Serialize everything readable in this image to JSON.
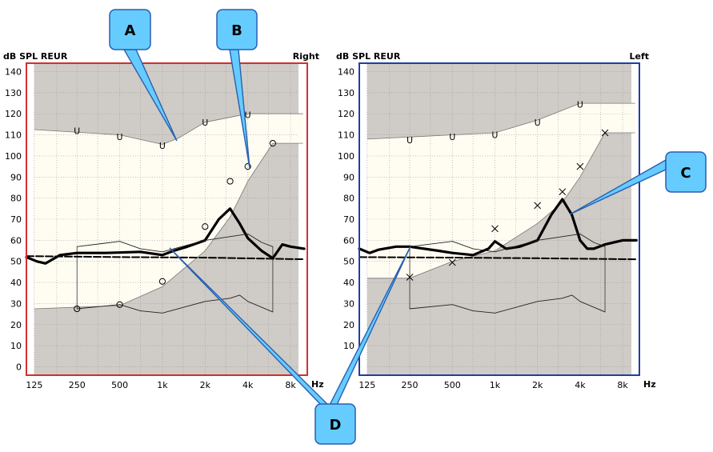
{
  "chart_data": [
    {
      "type": "line",
      "side_label": "Right",
      "ylabel": "dB SPL REUR",
      "xlabel": "Hz",
      "xscale": "log",
      "xlim": [
        110,
        10500
      ],
      "ylim": [
        -4,
        144
      ],
      "x_ticks": [
        125,
        250,
        500,
        1000,
        2000,
        4000,
        8000
      ],
      "x_tick_labels": [
        "125",
        "250",
        "500",
        "1k",
        "2k",
        "4k",
        "8k"
      ],
      "y_ticks": [
        0,
        10,
        20,
        30,
        40,
        50,
        60,
        70,
        80,
        90,
        100,
        110,
        120,
        130,
        140
      ],
      "y_tick_labels": [
        "0",
        "10",
        "20",
        "30",
        "40",
        "50",
        "60",
        "70",
        "80",
        "90",
        "100",
        "110",
        "120",
        "130",
        "140"
      ],
      "frame_color": "#d03030",
      "target_zone": {
        "upper": [
          [
            125,
            112.5
          ],
          [
            500,
            110
          ],
          [
            1000,
            105.5
          ],
          [
            1300,
            108.5
          ],
          [
            2000,
            116
          ],
          [
            4000,
            120
          ],
          [
            4001,
            120
          ],
          [
            9800,
            120
          ]
        ],
        "lower": [
          [
            125,
            27.5
          ],
          [
            500,
            29
          ],
          [
            1000,
            38
          ],
          [
            2000,
            55
          ],
          [
            3000,
            71
          ],
          [
            4000,
            88
          ],
          [
            6000,
            106
          ],
          [
            9800,
            106
          ]
        ]
      },
      "ucl_markers": {
        "symbol": "U",
        "points": [
          [
            250,
            112
          ],
          [
            500,
            109
          ],
          [
            1000,
            105
          ],
          [
            2000,
            116
          ],
          [
            4000,
            119.5
          ]
        ]
      },
      "threshold_markers": {
        "symbol": "O",
        "points": [
          [
            250,
            27.5
          ],
          [
            500,
            29.5
          ],
          [
            1000,
            40.5
          ],
          [
            2000,
            66.5
          ],
          [
            3000,
            88
          ],
          [
            4000,
            95
          ],
          [
            6000,
            106
          ]
        ]
      },
      "series": [
        {
          "name": "",
          "style": "bold",
          "points": [
            [
              110,
              52
            ],
            [
              130,
              50
            ],
            [
              150,
              49
            ],
            [
              190,
              53
            ],
            [
              250,
              54
            ],
            [
              400,
              54
            ],
            [
              700,
              54.5
            ],
            [
              1000,
              53
            ],
            [
              1200,
              55
            ],
            [
              1500,
              57
            ],
            [
              2000,
              60
            ],
            [
              2500,
              70
            ],
            [
              3000,
              75
            ],
            [
              3500,
              68
            ],
            [
              4000,
              61
            ],
            [
              5000,
              55
            ],
            [
              6000,
              51.5
            ],
            [
              7000,
              58
            ],
            [
              8000,
              57
            ],
            [
              10000,
              56
            ]
          ]
        },
        {
          "name": "",
          "style": "dashed",
          "points": [
            [
              110,
              52.5
            ],
            [
              500,
              52
            ],
            [
              2000,
              51.8
            ],
            [
              10000,
              51
            ]
          ]
        },
        {
          "name": "",
          "style": "thin",
          "points": [
            [
              250,
              57
            ],
            [
              500,
              59.5
            ],
            [
              700,
              56
            ],
            [
              1000,
              54.5
            ],
            [
              2000,
              60
            ],
            [
              4000,
              63
            ],
            [
              5000,
              59
            ],
            [
              6000,
              57
            ]
          ]
        },
        {
          "name": "",
          "style": "thin",
          "points": [
            [
              250,
              27.5
            ],
            [
              500,
              29.5
            ],
            [
              700,
              26.5
            ],
            [
              1000,
              25.5
            ],
            [
              2000,
              31
            ],
            [
              3000,
              32.5
            ],
            [
              3500,
              34
            ],
            [
              4000,
              31
            ],
            [
              6000,
              26
            ]
          ]
        }
      ],
      "bracket": {
        "x1": 250,
        "x2": 6000,
        "y_low_left": 27.5,
        "y_high_left": 57,
        "y_low_right": 26,
        "y_high_right": 57
      }
    },
    {
      "type": "line",
      "side_label": "Left",
      "ylabel": "dB SPL REUR",
      "xlabel": "Hz",
      "xscale": "log",
      "xlim": [
        110,
        10500
      ],
      "ylim": [
        -4,
        144
      ],
      "x_ticks": [
        125,
        250,
        500,
        1000,
        2000,
        4000,
        8000
      ],
      "x_tick_labels": [
        "125",
        "250",
        "500",
        "1k",
        "2k",
        "4k",
        "8k"
      ],
      "y_ticks": [
        0,
        10,
        20,
        30,
        40,
        50,
        60,
        70,
        80,
        90,
        100,
        110,
        120,
        130,
        140
      ],
      "y_tick_labels": [
        "0",
        "10",
        "20",
        "30",
        "40",
        "50",
        "60",
        "70",
        "80",
        "90",
        "100",
        "110",
        "120",
        "130",
        "140"
      ],
      "frame_color": "#1f3fa0",
      "target_zone": {
        "upper": [
          [
            125,
            108
          ],
          [
            500,
            110
          ],
          [
            1000,
            111
          ],
          [
            2000,
            117
          ],
          [
            4000,
            125
          ],
          [
            9800,
            125
          ]
        ],
        "lower": [
          [
            125,
            42
          ],
          [
            250,
            42
          ],
          [
            500,
            50
          ],
          [
            1000,
            55
          ],
          [
            2000,
            68
          ],
          [
            3000,
            78
          ],
          [
            4000,
            90
          ],
          [
            6000,
            111
          ],
          [
            9800,
            111
          ]
        ]
      },
      "ucl_markers": {
        "symbol": "U",
        "points": [
          [
            250,
            107.5
          ],
          [
            500,
            109
          ],
          [
            1000,
            110
          ],
          [
            2000,
            116
          ],
          [
            4000,
            124.5
          ]
        ]
      },
      "threshold_markers": {
        "symbol": "X",
        "points": [
          [
            250,
            42.5
          ],
          [
            500,
            49.5
          ],
          [
            1000,
            65.5
          ],
          [
            2000,
            76.5
          ],
          [
            3000,
            83
          ],
          [
            4000,
            95
          ],
          [
            6000,
            111
          ]
        ]
      },
      "series": [
        {
          "name": "",
          "style": "bold",
          "points": [
            [
              110,
              56
            ],
            [
              130,
              54
            ],
            [
              150,
              55.5
            ],
            [
              200,
              57
            ],
            [
              250,
              57
            ],
            [
              400,
              55
            ],
            [
              500,
              54
            ],
            [
              700,
              53
            ],
            [
              900,
              56
            ],
            [
              1000,
              59.5
            ],
            [
              1200,
              56
            ],
            [
              1500,
              57
            ],
            [
              2000,
              60
            ],
            [
              2500,
              72
            ],
            [
              3000,
              79.5
            ],
            [
              3500,
              72
            ],
            [
              4000,
              60
            ],
            [
              4500,
              56
            ],
            [
              5000,
              56
            ],
            [
              6000,
              58
            ],
            [
              8000,
              60
            ],
            [
              10000,
              60
            ]
          ]
        },
        {
          "name": "",
          "style": "dashed",
          "points": [
            [
              110,
              52
            ],
            [
              500,
              51.8
            ],
            [
              2000,
              51.5
            ],
            [
              10000,
              51
            ]
          ]
        },
        {
          "name": "",
          "style": "thin",
          "points": [
            [
              250,
              57
            ],
            [
              500,
              59.5
            ],
            [
              700,
              56
            ],
            [
              1000,
              54.5
            ],
            [
              2000,
              60
            ],
            [
              4000,
              63
            ],
            [
              5000,
              59
            ],
            [
              6000,
              57
            ]
          ]
        },
        {
          "name": "",
          "style": "thin",
          "points": [
            [
              250,
              27.5
            ],
            [
              500,
              29.5
            ],
            [
              700,
              26.5
            ],
            [
              1000,
              25.5
            ],
            [
              2000,
              31
            ],
            [
              3000,
              32.5
            ],
            [
              3500,
              34
            ],
            [
              4000,
              31
            ],
            [
              6000,
              26
            ]
          ]
        }
      ],
      "bracket": {
        "x1": 250,
        "x2": 6000,
        "y_low_left": 27.5,
        "y_high_left": 57,
        "y_low_right": 26,
        "y_high_right": 57
      }
    }
  ],
  "annotations": [
    {
      "label": "A"
    },
    {
      "label": "B"
    },
    {
      "label": "C"
    },
    {
      "label": "D"
    }
  ],
  "colors": {
    "zone_fill": "#fffdf2",
    "outside_fill": "#cfcbc6",
    "grid": "#9a9a9a",
    "callout_fill": "#66ccff",
    "callout_stroke": "#2a5fb0"
  }
}
